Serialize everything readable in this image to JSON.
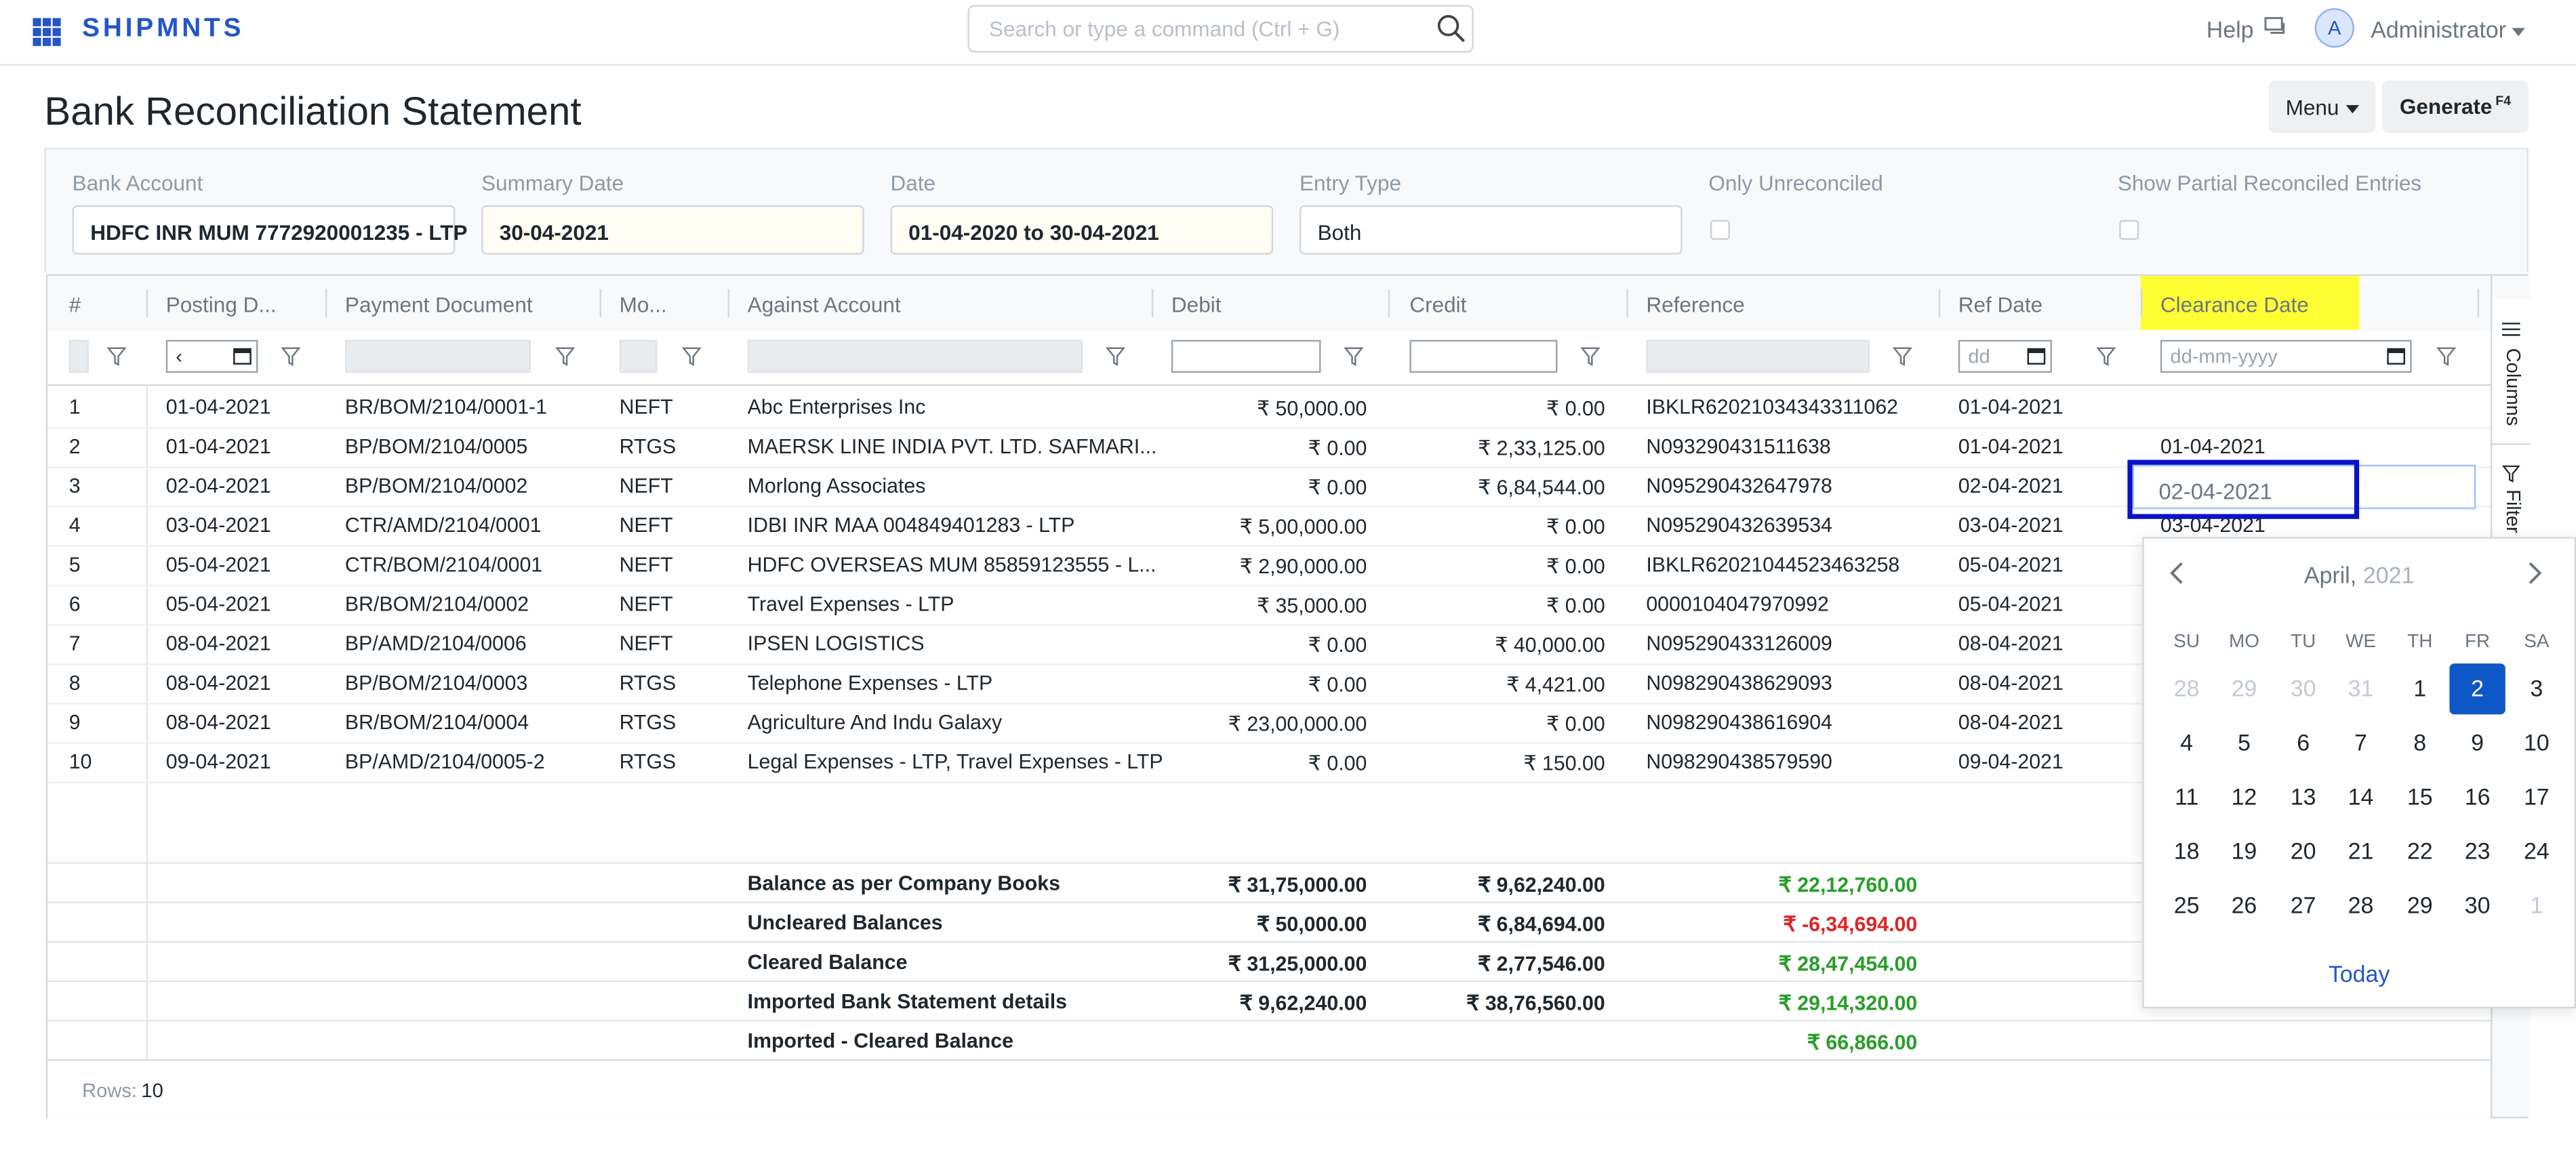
{
  "navbar": {
    "brand": "SHIPMNTS",
    "search_placeholder": "Search or type a command (Ctrl + G)",
    "help": "Help",
    "avatar_initial": "A",
    "user": "Administrator"
  },
  "page": {
    "title": "Bank Reconciliation Statement",
    "menu_label": "Menu",
    "generate_label": "Generate",
    "generate_shortcut": "F4"
  },
  "filters": {
    "bank_account_label": "Bank Account",
    "bank_account_value": "HDFC INR MUM 7772920001235 - LTP",
    "summary_date_label": "Summary Date",
    "summary_date_value": "30-04-2021",
    "date_label": "Date",
    "date_value": "01-04-2020 to 30-04-2021",
    "entry_type_label": "Entry Type",
    "entry_type_value": "Both",
    "only_unreconciled_label": "Only Unreconciled",
    "show_partial_label": "Show Partial Reconciled Entries"
  },
  "table": {
    "columns": [
      "#",
      "Posting D...",
      "Payment Document",
      "Mo...",
      "Against Account",
      "Debit",
      "Credit",
      "Reference",
      "Ref Date",
      "Clearance Date"
    ],
    "filter_placeholders": {
      "posting_date": "‹",
      "ref_date": "dd",
      "clearance_date": "dd-mm-yyyy"
    },
    "rows": [
      {
        "n": "1",
        "posting": "01-04-2021",
        "doc": "BR/BOM/2104/0001-1",
        "mode": "NEFT",
        "against": "Abc Enterprises Inc",
        "debit": "₹ 50,000.00",
        "credit": "₹ 0.00",
        "ref": "IBKLR62021034343311062",
        "refdate": "01-04-2021",
        "clear": ""
      },
      {
        "n": "2",
        "posting": "01-04-2021",
        "doc": "BP/BOM/2104/0005",
        "mode": "RTGS",
        "against": "MAERSK LINE INDIA PVT. LTD. SAFMARI...",
        "debit": "₹ 0.00",
        "credit": "₹ 2,33,125.00",
        "ref": "N093290431511638",
        "refdate": "01-04-2021",
        "clear": "01-04-2021"
      },
      {
        "n": "3",
        "posting": "02-04-2021",
        "doc": "BP/BOM/2104/0002",
        "mode": "NEFT",
        "against": "Morlong Associates",
        "debit": "₹ 0.00",
        "credit": "₹ 6,84,544.00",
        "ref": "N095290432647978",
        "refdate": "02-04-2021",
        "clear": ""
      },
      {
        "n": "4",
        "posting": "03-04-2021",
        "doc": "CTR/AMD/2104/0001",
        "mode": "NEFT",
        "against": "IDBI INR MAA 004849401283 - LTP",
        "debit": "₹ 5,00,000.00",
        "credit": "₹ 0.00",
        "ref": "N095290432639534",
        "refdate": "03-04-2021",
        "clear": "03-04-2021"
      },
      {
        "n": "5",
        "posting": "05-04-2021",
        "doc": "CTR/BOM/2104/0001",
        "mode": "NEFT",
        "against": "HDFC OVERSEAS MUM 85859123555 - L...",
        "debit": "₹ 2,90,000.00",
        "credit": "₹ 0.00",
        "ref": "IBKLR62021044523463258",
        "refdate": "05-04-2021",
        "clear": ""
      },
      {
        "n": "6",
        "posting": "05-04-2021",
        "doc": "BR/BOM/2104/0002",
        "mode": "NEFT",
        "against": "Travel Expenses - LTP",
        "debit": "₹ 35,000.00",
        "credit": "₹ 0.00",
        "ref": "0000104047970992",
        "refdate": "05-04-2021",
        "clear": ""
      },
      {
        "n": "7",
        "posting": "08-04-2021",
        "doc": "BP/AMD/2104/0006",
        "mode": "NEFT",
        "against": "IPSEN LOGISTICS",
        "debit": "₹ 0.00",
        "credit": "₹ 40,000.00",
        "ref": "N095290433126009",
        "refdate": "08-04-2021",
        "clear": ""
      },
      {
        "n": "8",
        "posting": "08-04-2021",
        "doc": "BP/BOM/2104/0003",
        "mode": "RTGS",
        "against": "Telephone Expenses - LTP",
        "debit": "₹ 0.00",
        "credit": "₹ 4,421.00",
        "ref": "N098290438629093",
        "refdate": "08-04-2021",
        "clear": ""
      },
      {
        "n": "9",
        "posting": "08-04-2021",
        "doc": "BR/BOM/2104/0004",
        "mode": "RTGS",
        "against": "Agriculture And Indu Galaxy",
        "debit": "₹ 23,00,000.00",
        "credit": "₹ 0.00",
        "ref": "N098290438616904",
        "refdate": "08-04-2021",
        "clear": ""
      },
      {
        "n": "10",
        "posting": "09-04-2021",
        "doc": "BP/AMD/2104/0005-2",
        "mode": "RTGS",
        "against": "Legal Expenses - LTP, Travel Expenses - LTP",
        "debit": "₹ 0.00",
        "credit": "₹ 150.00",
        "ref": "N098290438579590",
        "refdate": "09-04-2021",
        "clear": ""
      }
    ],
    "summary": [
      {
        "label": "Balance as per Company Books",
        "debit": "₹ 31,75,000.00",
        "credit": "₹ 9,62,240.00",
        "balance": "₹ 22,12,760.00",
        "color": "#2a9d2a"
      },
      {
        "label": "Uncleared Balances",
        "debit": "₹ 50,000.00",
        "credit": "₹ 6,84,694.00",
        "balance": "₹ -6,34,694.00",
        "color": "#e02424"
      },
      {
        "label": "Cleared Balance",
        "debit": "₹ 31,25,000.00",
        "credit": "₹ 2,77,546.00",
        "balance": "₹ 28,47,454.00",
        "color": "#2a9d2a"
      },
      {
        "label": "Imported Bank Statement details",
        "debit": "₹ 9,62,240.00",
        "credit": "₹ 38,76,560.00",
        "balance": "₹ 29,14,320.00",
        "color": "#2a9d2a"
      },
      {
        "label": "Imported - Cleared Balance",
        "debit": "",
        "credit": "",
        "balance": "₹ 66,866.00",
        "color": "#2a9d2a"
      }
    ],
    "rows_label": "Rows:",
    "rows_count": "10",
    "side_tabs": [
      "Columns",
      "Filter"
    ]
  },
  "editing": {
    "value": "02-04-2021"
  },
  "datepicker": {
    "month": "April,",
    "year": "2021",
    "weekdays": [
      "SU",
      "MO",
      "TU",
      "WE",
      "TH",
      "FR",
      "SA"
    ],
    "days": [
      [
        "28",
        "29",
        "30",
        "31",
        "1",
        "2",
        "3"
      ],
      [
        "4",
        "5",
        "6",
        "7",
        "8",
        "9",
        "10"
      ],
      [
        "11",
        "12",
        "13",
        "14",
        "15",
        "16",
        "17"
      ],
      [
        "18",
        "19",
        "20",
        "21",
        "22",
        "23",
        "24"
      ],
      [
        "25",
        "26",
        "27",
        "28",
        "29",
        "30",
        "1"
      ]
    ],
    "selected": "2",
    "today_label": "Today"
  },
  "colors": {
    "brand": "#2456c7",
    "highlight": "#ffff33",
    "selected_day": "#0e57c6",
    "positive": "#2a9d2a",
    "negative": "#e02424",
    "focus_outline": "#0a12c8"
  }
}
